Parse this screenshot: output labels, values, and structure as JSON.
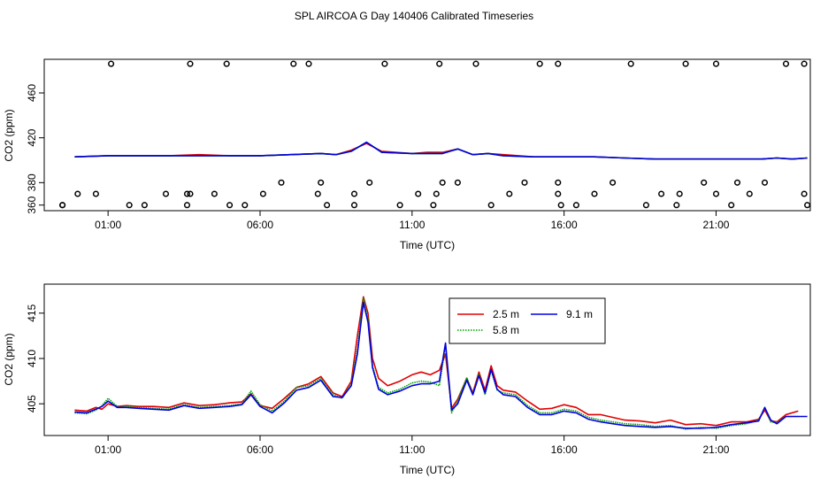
{
  "page_title": "SPL AIRCOA G  Day 140406  Calibrated Timeseries",
  "chart_data": [
    {
      "type": "line",
      "panel": "top",
      "xlabel": "Time (UTC)",
      "ylabel": "CO2 (ppm)",
      "x_unit": "hours UTC",
      "xlim": [
        -1.1,
        24.1
      ],
      "ylim": [
        355,
        490
      ],
      "x_ticks": [
        1,
        6,
        11,
        16,
        21
      ],
      "x_tick_labels": [
        "01:00",
        "06:00",
        "11:00",
        "16:00",
        "21:00"
      ],
      "y_ticks": [
        360,
        380,
        420,
        460
      ],
      "y_tick_labels": [
        "360",
        "380",
        "420",
        "460"
      ],
      "line_series": [
        {
          "name": "2.5 m",
          "color": "#e00000",
          "x": [
            -0.1,
            1,
            2,
            3,
            4,
            5,
            6,
            7,
            8,
            8.5,
            9,
            9.5,
            10,
            11,
            11.5,
            12,
            12.5,
            13,
            13.5,
            14,
            15,
            16,
            17,
            18,
            19,
            20,
            21,
            22,
            22.5,
            23,
            23.5,
            24
          ],
          "y": [
            403,
            404,
            404,
            404,
            405,
            404,
            404,
            405,
            406,
            405,
            409,
            415,
            408,
            406,
            407,
            407,
            410,
            405,
            406,
            405,
            403,
            403,
            403,
            402,
            401,
            401,
            401,
            401,
            401,
            402,
            401,
            402
          ]
        },
        {
          "name": "5.8 m",
          "color": "#00a000",
          "x": [
            -0.1,
            1,
            2,
            3,
            4,
            5,
            6,
            7,
            8,
            8.5,
            9,
            9.5,
            10,
            11,
            11.5,
            12,
            12.5,
            13,
            13.5,
            14,
            15,
            16,
            17,
            18,
            19,
            20,
            21,
            22,
            22.5,
            23,
            23.5,
            24
          ],
          "y": [
            403,
            404,
            404,
            404,
            404,
            404,
            404,
            405,
            406,
            405,
            408,
            416,
            407,
            406,
            406,
            406,
            410,
            405,
            406,
            404,
            403,
            403,
            403,
            402,
            401,
            401,
            401,
            401,
            401,
            402,
            401,
            402
          ]
        },
        {
          "name": "9.1 m",
          "color": "#0000e0",
          "x": [
            -0.1,
            1,
            2,
            3,
            4,
            5,
            6,
            7,
            8,
            8.5,
            9,
            9.5,
            10,
            11,
            11.5,
            12,
            12.5,
            13,
            13.5,
            14,
            15,
            16,
            17,
            18,
            19,
            20,
            21,
            22,
            22.5,
            23,
            23.5,
            24
          ],
          "y": [
            403,
            404,
            404,
            404,
            404,
            404,
            404,
            405,
            406,
            405,
            408,
            416,
            407,
            406,
            406,
            406,
            410,
            405,
            406,
            404,
            403,
            403,
            403,
            402,
            401,
            401,
            401,
            401,
            401,
            402,
            401,
            402
          ]
        }
      ],
      "points": {
        "label": "calibration standards",
        "x": [
          -0.5,
          2.2,
          5,
          0.6,
          3.7,
          4.5,
          6.7,
          8.0,
          9.6,
          12.0,
          12.5,
          14.7,
          15.8,
          17.6,
          20.6,
          21.7,
          22.6,
          0,
          2.9,
          3.6,
          6.1,
          7.9,
          9.1,
          11.2,
          11.8,
          14.2,
          15.8,
          17.0,
          19.2,
          19.8,
          21.0,
          22.1,
          23.9,
          -0.5,
          1.7,
          3.6,
          5.5,
          8.2,
          9.1,
          10.6,
          11.7,
          13.6,
          15.9,
          16.4,
          18.7,
          19.7,
          21.5,
          24.0,
          1.1,
          3.7,
          4.9,
          7.1,
          7.6,
          10.1,
          11.9,
          13.1,
          15.2,
          15.8,
          18.2,
          20.0,
          21.0,
          23.3,
          23.9
        ],
        "y": [
          360,
          360,
          360,
          370,
          370,
          370,
          380,
          380,
          380,
          380,
          380,
          380,
          380,
          380,
          380,
          380,
          380,
          370,
          370,
          370,
          370,
          370,
          370,
          370,
          370,
          370,
          370,
          370,
          370,
          370,
          370,
          370,
          370,
          360,
          360,
          360,
          360,
          360,
          360,
          360,
          360,
          360,
          360,
          360,
          360,
          360,
          360,
          360,
          486,
          486,
          486,
          486,
          486,
          486,
          486,
          486,
          486,
          486,
          486,
          486,
          486,
          486,
          486
        ]
      }
    },
    {
      "type": "line",
      "panel": "bottom",
      "xlabel": "Time (UTC)",
      "ylabel": "CO2 (ppm)",
      "x_unit": "hours UTC",
      "xlim": [
        -1.1,
        24.1
      ],
      "ylim": [
        401.5,
        418.2
      ],
      "x_ticks": [
        1,
        6,
        11,
        16,
        21
      ],
      "x_tick_labels": [
        "01:00",
        "06:00",
        "11:00",
        "16:00",
        "21:00"
      ],
      "y_ticks": [
        405,
        410,
        415
      ],
      "y_tick_labels": [
        "405",
        "410",
        "415"
      ],
      "legend": {
        "position": "top-center",
        "entries": [
          "2.5 m",
          "5.8 m",
          "9.1 m"
        ]
      },
      "series": [
        {
          "name": "2.5 m",
          "color": "#e00000",
          "style": "solid",
          "x": [
            -0.1,
            0.3,
            0.6,
            0.8,
            1.0,
            1.3,
            1.6,
            2.0,
            2.5,
            3.0,
            3.5,
            4.0,
            4.5,
            5.0,
            5.4,
            5.7,
            6.0,
            6.4,
            6.8,
            7.2,
            7.6,
            8.0,
            8.4,
            8.7,
            9.0,
            9.2,
            9.4,
            9.55,
            9.7,
            9.9,
            10.2,
            10.6,
            11.0,
            11.3,
            11.6,
            11.9,
            12.1,
            12.3,
            12.5,
            12.8,
            13.0,
            13.2,
            13.4,
            13.6,
            13.8,
            14.0,
            14.4,
            14.8,
            15.2,
            15.6,
            16.0,
            16.4,
            16.8,
            17.2,
            17.6,
            18.0,
            18.5,
            19.0,
            19.5,
            20.0,
            20.5,
            21.0,
            21.5,
            22.0,
            22.4,
            22.6,
            22.8,
            23.0,
            23.3,
            23.7
          ],
          "y": [
            404.3,
            404.2,
            404.6,
            404.4,
            405.0,
            404.7,
            404.8,
            404.7,
            404.7,
            404.6,
            405.1,
            404.8,
            404.9,
            405.1,
            405.2,
            406.1,
            404.8,
            404.5,
            405.6,
            406.8,
            407.2,
            408.0,
            406.2,
            405.8,
            407.5,
            412.5,
            416.8,
            415.0,
            410.0,
            407.8,
            407.0,
            407.5,
            408.2,
            408.5,
            408.2,
            408.7,
            410.5,
            404.5,
            405.5,
            407.8,
            406.2,
            408.5,
            406.5,
            409.2,
            407.0,
            406.5,
            406.3,
            405.3,
            404.4,
            404.5,
            404.9,
            404.6,
            403.8,
            403.8,
            403.5,
            403.2,
            403.1,
            402.9,
            403.2,
            402.7,
            402.8,
            402.6,
            403.0,
            403.0,
            403.3,
            404.3,
            403.1,
            403.0,
            403.8,
            404.2
          ]
        },
        {
          "name": "5.8 m",
          "color": "#00a000",
          "style": "dotted",
          "x": [
            -0.1,
            0.3,
            0.6,
            0.8,
            1.0,
            1.3,
            1.6,
            2.0,
            2.5,
            3.0,
            3.5,
            4.0,
            4.5,
            5.0,
            5.4,
            5.7,
            6.0,
            6.4,
            6.8,
            7.2,
            7.6,
            8.0,
            8.4,
            8.7,
            9.0,
            9.2,
            9.4,
            9.55,
            9.7,
            9.9,
            10.2,
            10.6,
            11.0,
            11.3,
            11.6,
            11.9,
            12.1,
            12.3,
            12.5,
            12.8,
            13.0,
            13.2,
            13.4,
            13.6,
            13.8,
            14.0,
            14.4,
            14.8,
            15.2,
            15.6,
            16.0,
            16.4,
            16.8,
            17.2,
            17.6,
            18.0,
            18.5,
            19.0,
            19.5,
            20.0,
            20.5,
            21.0,
            21.5,
            22.0,
            22.4,
            22.6,
            22.8,
            23.0,
            23.3,
            23.7
          ],
          "y": [
            404.0,
            403.9,
            404.3,
            404.8,
            405.6,
            404.7,
            404.7,
            404.6,
            404.5,
            404.4,
            404.9,
            404.6,
            404.7,
            404.8,
            405.0,
            406.4,
            404.9,
            404.2,
            405.3,
            406.8,
            407.0,
            407.8,
            406.0,
            405.6,
            407.2,
            411.0,
            416.6,
            414.5,
            409.2,
            406.8,
            406.2,
            406.6,
            407.3,
            407.5,
            407.4,
            407.0,
            411.5,
            404.0,
            405.3,
            407.9,
            406.1,
            408.3,
            406.0,
            408.7,
            406.5,
            406.2,
            406.0,
            404.8,
            404.0,
            404.0,
            404.4,
            404.2,
            403.5,
            403.2,
            403.0,
            402.8,
            402.7,
            402.5,
            402.6,
            402.2,
            402.4,
            402.3,
            402.6,
            402.8,
            403.2,
            404.6,
            403.0,
            402.9,
            403.6,
            403.6
          ]
        },
        {
          "name": "9.1 m",
          "color": "#0000e0",
          "style": "solid",
          "x": [
            -0.1,
            0.3,
            0.6,
            0.8,
            1.0,
            1.3,
            1.6,
            2.0,
            2.5,
            3.0,
            3.5,
            4.0,
            4.5,
            5.0,
            5.4,
            5.7,
            6.0,
            6.4,
            6.8,
            7.2,
            7.6,
            8.0,
            8.4,
            8.7,
            9.0,
            9.2,
            9.4,
            9.55,
            9.7,
            9.9,
            10.2,
            10.6,
            11.0,
            11.3,
            11.6,
            11.9,
            12.1,
            12.3,
            12.5,
            12.8,
            13.0,
            13.2,
            13.4,
            13.6,
            13.8,
            14.0,
            14.4,
            14.8,
            15.2,
            15.6,
            16.0,
            16.4,
            16.8,
            17.2,
            17.6,
            18.0,
            18.5,
            19.0,
            19.5,
            20.0,
            20.5,
            21.0,
            21.5,
            22.0,
            22.4,
            22.6,
            22.8,
            23.0,
            23.3,
            23.7,
            24.0
          ],
          "y": [
            404.1,
            404.0,
            404.4,
            404.7,
            405.3,
            404.6,
            404.6,
            404.5,
            404.4,
            404.3,
            404.8,
            404.5,
            404.6,
            404.7,
            404.9,
            406.0,
            404.7,
            404.0,
            405.1,
            406.5,
            406.8,
            407.6,
            405.8,
            405.7,
            407.0,
            410.5,
            416.2,
            414.0,
            409.0,
            406.6,
            406.0,
            406.4,
            407.0,
            407.2,
            407.2,
            407.5,
            411.7,
            404.3,
            405.0,
            407.6,
            406.0,
            408.1,
            406.2,
            408.8,
            406.6,
            406.0,
            405.8,
            404.6,
            403.8,
            403.8,
            404.2,
            404.0,
            403.3,
            403.0,
            402.8,
            402.6,
            402.5,
            402.4,
            402.5,
            402.3,
            402.3,
            402.4,
            402.7,
            402.9,
            403.1,
            404.6,
            403.2,
            402.8,
            403.6,
            403.6,
            403.6
          ]
        }
      ]
    }
  ]
}
